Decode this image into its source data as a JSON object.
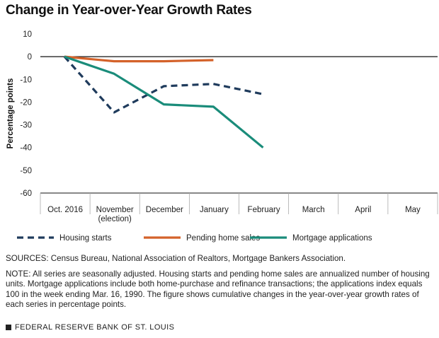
{
  "title": "Change in Year-over-Year Growth Rates",
  "notes": {
    "sources": "SOURCES: Census Bureau, National Association of Realtors, Mortgage Bankers Association.",
    "note": "NOTE: All series are seasonally adjusted. Housing starts and pending home sales are annualized number of housing units. Mortgage applications include both home-purchase and refinance transactions; the applications index equals 100 in the week ending Mar. 16, 1990. The figure shows cumulative changes in the year-over-year growth rates of each series in percentage points."
  },
  "footer": {
    "text": "FEDERAL RESERVE BANK OF ST. LOUIS"
  },
  "chart_data": {
    "type": "line",
    "title": "Change in Year-over-Year Growth Rates",
    "xlabel": "",
    "ylabel": "Percentage points",
    "categories": [
      [
        "Oct. 2016"
      ],
      [
        "November",
        "(election)"
      ],
      [
        "December"
      ],
      [
        "January"
      ],
      [
        "February"
      ],
      [
        "March"
      ],
      [
        "April"
      ],
      [
        "May"
      ]
    ],
    "ylim": [
      -60,
      10
    ],
    "yticks": [
      10,
      0,
      -10,
      -20,
      -30,
      -40,
      -50,
      -60
    ],
    "ytick_labels": [
      "10",
      "0",
      "-10",
      "-20",
      "-30",
      "-40",
      "-50",
      "-60"
    ],
    "grid": false,
    "legend_position": "bottom",
    "series": [
      {
        "name": "Housing starts",
        "color": "#1f3b5c",
        "dash": true,
        "values": [
          0,
          -24.5,
          -13,
          -12,
          -16.5,
          null,
          null,
          null
        ]
      },
      {
        "name": "Pending home sales",
        "color": "#d4622a",
        "dash": false,
        "values": [
          0,
          -2,
          -2,
          -1.5,
          null,
          null,
          null,
          null
        ]
      },
      {
        "name": "Mortgage applications",
        "color": "#1a8c7a",
        "dash": false,
        "values": [
          0,
          -7.5,
          -21,
          -22,
          -40,
          null,
          null,
          null
        ]
      }
    ]
  }
}
